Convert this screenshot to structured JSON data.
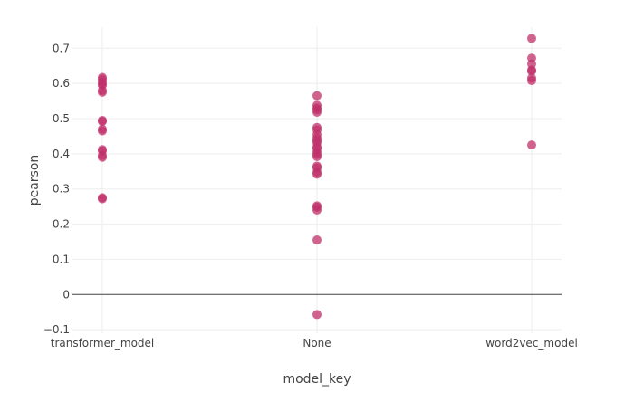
{
  "chart_data": {
    "type": "scatter",
    "xlabel": "model_key",
    "ylabel": "pearson",
    "categories": [
      "transformer_model",
      "None",
      "word2vec_model"
    ],
    "ylim": [
      -0.11,
      0.76
    ],
    "yticks": [
      -0.1,
      0,
      0.1,
      0.2,
      0.3,
      0.4,
      0.5,
      0.6,
      0.7
    ],
    "ytick_labels": [
      "−0.1",
      "0",
      "0.1",
      "0.2",
      "0.3",
      "0.4",
      "0.5",
      "0.6",
      "0.7"
    ],
    "grid": true,
    "legend": "none",
    "marker_color": "#c0306a",
    "marker_opacity": 0.75,
    "zero_line_color": "#444444",
    "series": [
      {
        "category": "transformer_model",
        "values": [
          0.617,
          0.612,
          0.605,
          0.598,
          0.595,
          0.58,
          0.575,
          0.495,
          0.492,
          0.47,
          0.465,
          0.412,
          0.408,
          0.395,
          0.39,
          0.275,
          0.272
        ]
      },
      {
        "category": "None",
        "values": [
          0.565,
          0.538,
          0.53,
          0.525,
          0.518,
          0.475,
          0.468,
          0.455,
          0.445,
          0.438,
          0.432,
          0.42,
          0.415,
          0.405,
          0.398,
          0.392,
          0.365,
          0.36,
          0.348,
          0.342,
          0.252,
          0.248,
          0.24,
          0.155,
          -0.057
        ]
      },
      {
        "category": "word2vec_model",
        "values": [
          0.728,
          0.672,
          0.655,
          0.638,
          0.635,
          0.615,
          0.608,
          0.425
        ]
      }
    ]
  }
}
